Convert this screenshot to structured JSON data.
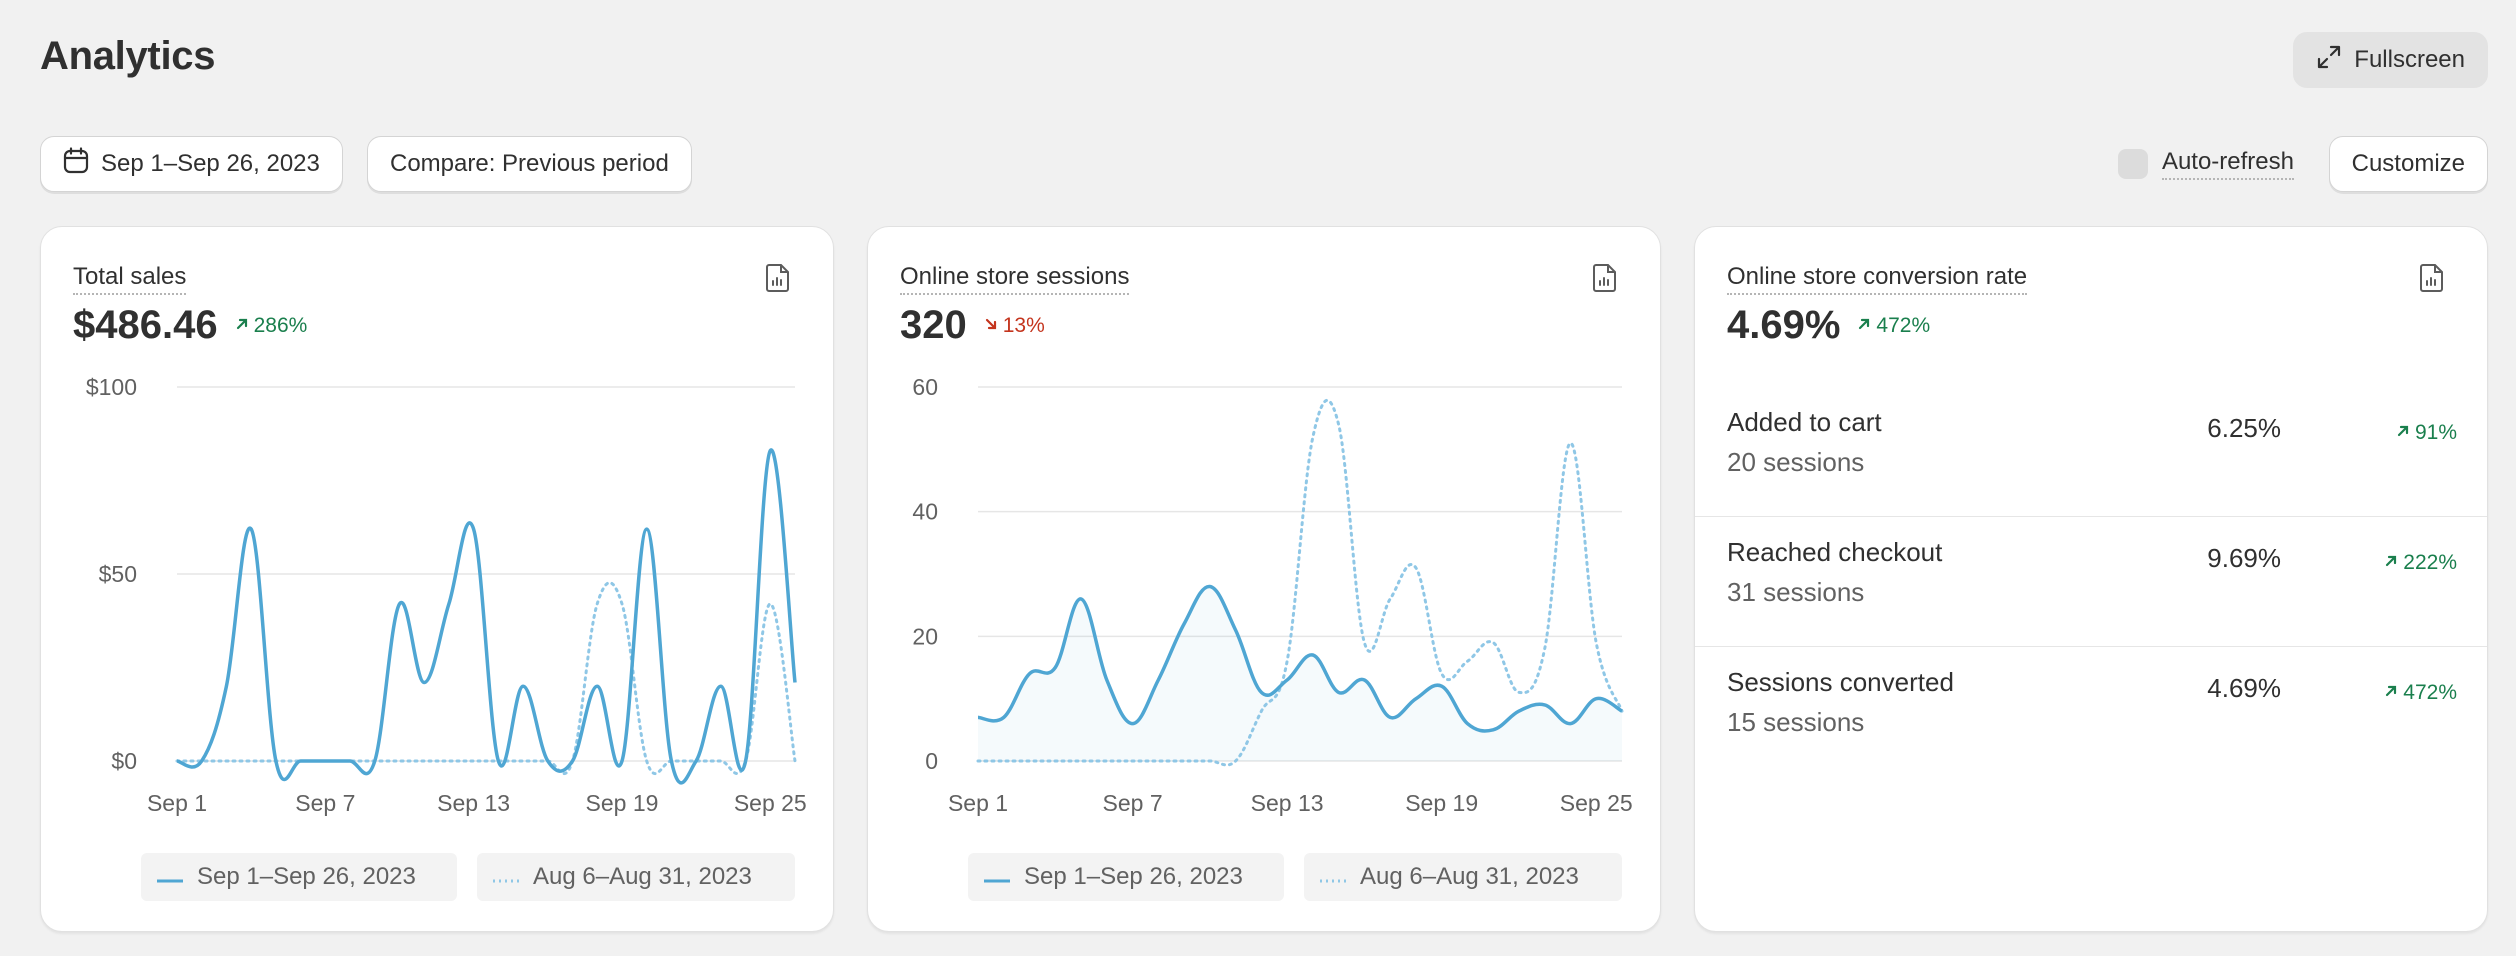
{
  "header": {
    "title": "Analytics",
    "fullscreen_label": "Fullscreen"
  },
  "toolbar": {
    "date_range": "Sep 1–Sep 26, 2023",
    "compare": "Compare: Previous period",
    "auto_refresh": "Auto-refresh",
    "customize": "Customize"
  },
  "colors": {
    "series_current": "#4fa6d3",
    "series_previous": "#8fc7e6",
    "trend_up": "#1a7f4d",
    "trend_down": "#c4341d"
  },
  "cards": {
    "total_sales": {
      "title": "Total sales",
      "value": "$486.46",
      "trend": "286%",
      "trend_dir": "up",
      "legend_current": "Sep 1–Sep 26, 2023",
      "legend_previous": "Aug 6–Aug 31, 2023"
    },
    "sessions": {
      "title": "Online store sessions",
      "value": "320",
      "trend": "13%",
      "trend_dir": "down",
      "legend_current": "Sep 1–Sep 26, 2023",
      "legend_previous": "Aug 6–Aug 31, 2023"
    },
    "conversion": {
      "title": "Online store conversion rate",
      "value": "4.69%",
      "trend": "472%",
      "trend_dir": "up",
      "rows": [
        {
          "label": "Added to cart",
          "sessions": "20 sessions",
          "pct": "6.25%",
          "trend": "91%"
        },
        {
          "label": "Reached checkout",
          "sessions": "31 sessions",
          "pct": "9.69%",
          "trend": "222%"
        },
        {
          "label": "Sessions converted",
          "sessions": "15 sessions",
          "pct": "4.69%",
          "trend": "472%"
        }
      ]
    }
  },
  "chart_data": [
    {
      "type": "line",
      "title": "Total sales",
      "x_ticks": [
        "Sep 1",
        "Sep 7",
        "Sep 13",
        "Sep 19",
        "Sep 25"
      ],
      "y_ticks": [
        "$100",
        "$50",
        "$0"
      ],
      "ylim": [
        0,
        100
      ],
      "x_days": [
        1,
        2,
        3,
        4,
        5,
        6,
        7,
        8,
        9,
        10,
        11,
        12,
        13,
        14,
        15,
        16,
        17,
        18,
        19,
        20,
        21,
        22,
        23,
        24,
        25,
        26
      ],
      "series": [
        {
          "name": "Sep 1–Sep 26, 2023",
          "style": "solid",
          "values": [
            0,
            0,
            20,
            62,
            0,
            0,
            0,
            0,
            0,
            42,
            21,
            42,
            62,
            0,
            20,
            0,
            0,
            20,
            0,
            62,
            0,
            0,
            20,
            0,
            83,
            21
          ]
        },
        {
          "name": "Aug 6–Aug 31, 2023",
          "style": "dotted",
          "values": [
            0,
            0,
            0,
            0,
            0,
            0,
            0,
            0,
            0,
            0,
            0,
            0,
            0,
            0,
            0,
            0,
            0,
            42,
            42,
            0,
            0,
            0,
            0,
            0,
            42,
            0
          ]
        }
      ],
      "legend": "bottom",
      "grid": true
    },
    {
      "type": "line",
      "title": "Online store sessions",
      "x_ticks": [
        "Sep 1",
        "Sep 7",
        "Sep 13",
        "Sep 19",
        "Sep 25"
      ],
      "y_ticks": [
        "60",
        "40",
        "20",
        "0"
      ],
      "ylim": [
        0,
        60
      ],
      "x_days": [
        1,
        2,
        3,
        4,
        5,
        6,
        7,
        8,
        9,
        10,
        11,
        12,
        13,
        14,
        15,
        16,
        17,
        18,
        19,
        20,
        21,
        22,
        23,
        24,
        25,
        26
      ],
      "series": [
        {
          "name": "Sep 1–Sep 26, 2023",
          "style": "solid",
          "values": [
            7,
            7,
            14,
            15,
            26,
            13,
            6,
            13,
            22,
            28,
            21,
            11,
            13,
            17,
            11,
            13,
            7,
            10,
            12,
            6,
            5,
            8,
            9,
            6,
            10,
            8
          ]
        },
        {
          "name": "Aug 6–Aug 31, 2023",
          "style": "dotted",
          "values": [
            0,
            0,
            0,
            0,
            0,
            0,
            0,
            0,
            0,
            0,
            0,
            8,
            16,
            52,
            54,
            19,
            26,
            31,
            14,
            16,
            19,
            11,
            18,
            51,
            19,
            8
          ]
        }
      ],
      "legend": "bottom",
      "grid": true
    }
  ]
}
